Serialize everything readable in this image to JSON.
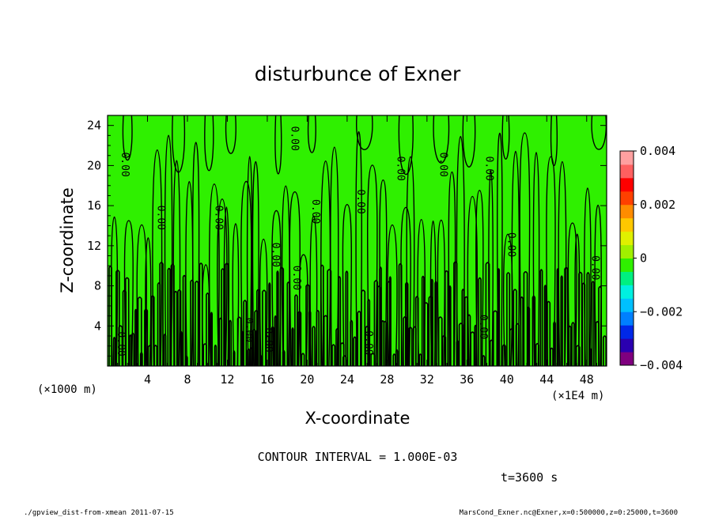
{
  "chart_data": {
    "type": "heatmap",
    "title": "disturbunce of Exner",
    "xlabel": "X-coordinate",
    "ylabel": "Z-coordinate",
    "x_unit_label": "(×1E4 m)",
    "y_unit_label": "(×1000 m)",
    "x_ticks": [
      "4",
      "8",
      "12",
      "16",
      "20",
      "24",
      "28",
      "32",
      "36",
      "40",
      "44",
      "48"
    ],
    "x_tick_values": [
      4,
      8,
      12,
      16,
      20,
      24,
      28,
      32,
      36,
      40,
      44,
      48
    ],
    "y_ticks": [
      "4",
      "8",
      "12",
      "16",
      "20",
      "24"
    ],
    "y_tick_values": [
      4,
      8,
      12,
      16,
      20,
      24
    ],
    "xlim": [
      0,
      50
    ],
    "ylim": [
      0,
      25
    ],
    "field_value": 0,
    "field_color": "#2ff000",
    "contour_color": "#000000",
    "contour_labels": [
      {
        "text": "0.00",
        "x": 1.3,
        "y": 2.2
      },
      {
        "text": "0.00",
        "x": 1.7,
        "y": 20.1
      },
      {
        "text": "0.00",
        "x": 5.3,
        "y": 14.8
      },
      {
        "text": "0.00",
        "x": 11.1,
        "y": 14.8
      },
      {
        "text": "0.00",
        "x": 18.7,
        "y": 22.7
      },
      {
        "text": "0.00",
        "x": 20.8,
        "y": 15.4
      },
      {
        "text": "0.00",
        "x": 25.3,
        "y": 16.4
      },
      {
        "text": "0.00",
        "x": 29.3,
        "y": 19.7
      },
      {
        "text": "0.00",
        "x": 33.6,
        "y": 20.1
      },
      {
        "text": "0.00",
        "x": 38.2,
        "y": 19.7
      },
      {
        "text": "0.00",
        "x": 16.8,
        "y": 11.1
      },
      {
        "text": "0.00",
        "x": 18.9,
        "y": 8.8
      },
      {
        "text": "0.00",
        "x": 14.1,
        "y": 3.6
      },
      {
        "text": "0.00",
        "x": 16.1,
        "y": 2.6
      },
      {
        "text": "0.00",
        "x": 26.1,
        "y": 2.3
      },
      {
        "text": "0.00",
        "x": 37.6,
        "y": 3.9
      },
      {
        "text": "0.00",
        "x": 40.4,
        "y": 12.1
      },
      {
        "text": "0.00",
        "x": 48.8,
        "y": 9.8
      }
    ],
    "colorbar": {
      "ticks": [
        "0.004",
        "0.002",
        "0",
        "−0.002",
        "−0.004"
      ],
      "tick_values": [
        0.004,
        0.002,
        0,
        -0.002,
        -0.004
      ],
      "range": [
        -0.004,
        0.004
      ],
      "colors": [
        "#7f007f",
        "#2a00b0",
        "#0028e8",
        "#0080ff",
        "#00c0ff",
        "#00f0e0",
        "#00f080",
        "#2ff000",
        "#a0f000",
        "#e0f000",
        "#ffc800",
        "#ff8c00",
        "#ff4000",
        "#ff0000",
        "#ff6060",
        "#ffa0a0"
      ]
    },
    "contour_interval_text": "CONTOUR INTERVAL = 1.000E-03",
    "time_text": "t=3600 s"
  },
  "footer": {
    "left": "./gpview_dist-from-xmean  2011-07-15",
    "right": "MarsCond_Exner.nc@Exner,x=0:500000,z=0:25000,t=3600"
  }
}
